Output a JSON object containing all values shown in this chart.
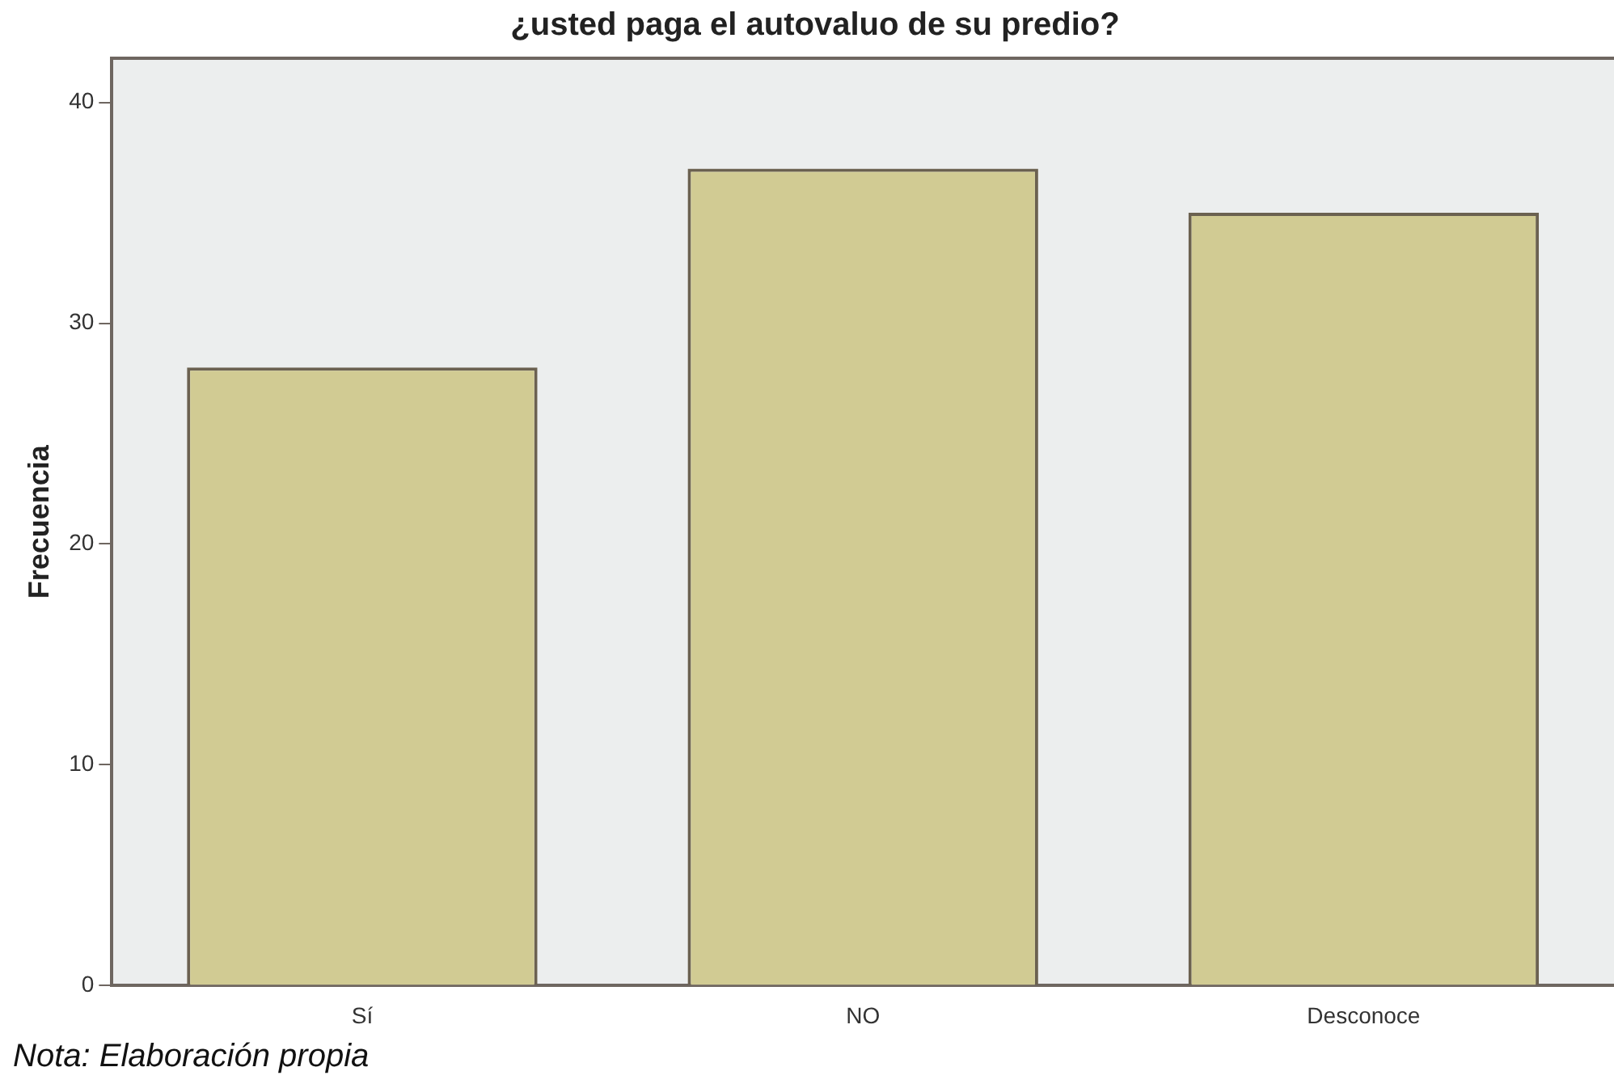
{
  "chart_data": {
    "type": "bar",
    "title": "¿usted paga el autovaluo de su predio?",
    "ylabel": "Frecuencia",
    "categories": [
      "Sí",
      "NO",
      "Desconoce"
    ],
    "values": [
      28,
      37,
      35
    ],
    "color": "#d1cb93",
    "ylim": [
      0,
      42
    ],
    "yticks": [
      0,
      10,
      20,
      30,
      40
    ],
    "grid": false,
    "legend": false,
    "annotations": [
      "Nota: Elaboración propia"
    ]
  }
}
